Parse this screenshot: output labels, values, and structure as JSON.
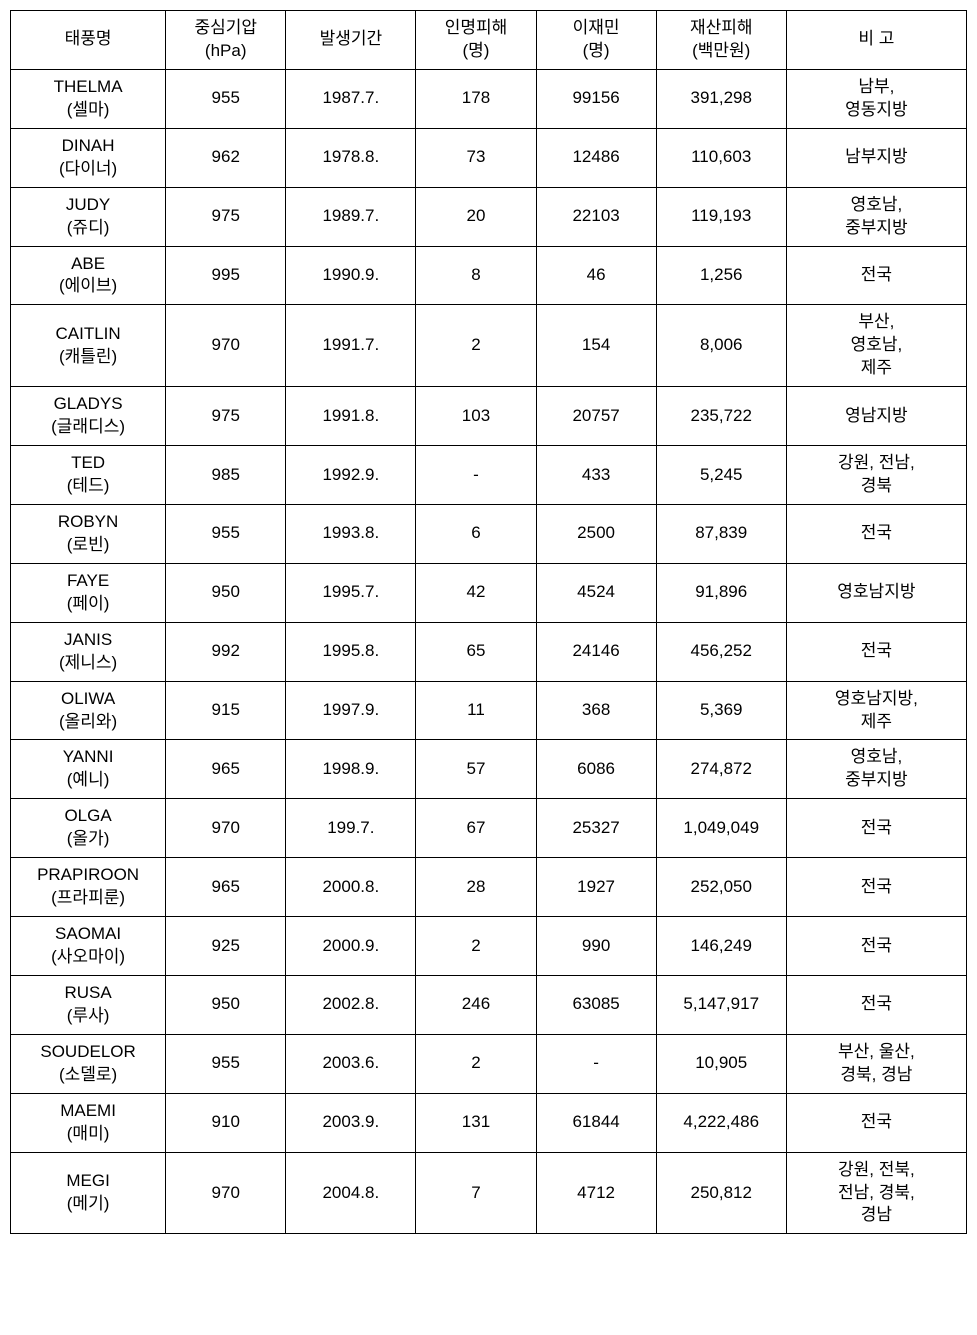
{
  "table": {
    "columns": [
      {
        "key": "name",
        "label": "태풍명",
        "class": "col-name"
      },
      {
        "key": "pressure",
        "label": "중심기압\n(hPa)",
        "class": "col-pressure"
      },
      {
        "key": "period",
        "label": "발생기간",
        "class": "col-period"
      },
      {
        "key": "casualties",
        "label": "인명피해\n(명)",
        "class": "col-casualties"
      },
      {
        "key": "displaced",
        "label": "이재민\n(명)",
        "class": "col-displaced"
      },
      {
        "key": "damage",
        "label": "재산피해\n(백만원)",
        "class": "col-damage"
      },
      {
        "key": "remarks",
        "label": "비  고",
        "class": "col-remarks"
      }
    ],
    "rows": [
      {
        "name": "THELMA\n(셀마)",
        "pressure": "955",
        "period": "1987.7.",
        "casualties": "178",
        "displaced": "99156",
        "damage": "391,298",
        "remarks": "남부,\n영동지방"
      },
      {
        "name": "DINAH\n(다이너)",
        "pressure": "962",
        "period": "1978.8.",
        "casualties": "73",
        "displaced": "12486",
        "damage": "110,603",
        "remarks": "남부지방"
      },
      {
        "name": "JUDY\n(쥬디)",
        "pressure": "975",
        "period": "1989.7.",
        "casualties": "20",
        "displaced": "22103",
        "damage": "119,193",
        "remarks": "영호남,\n중부지방"
      },
      {
        "name": "ABE\n(에이브)",
        "pressure": "995",
        "period": "1990.9.",
        "casualties": "8",
        "displaced": "46",
        "damage": "1,256",
        "remarks": "전국"
      },
      {
        "name": "CAITLIN\n(캐틀린)",
        "pressure": "970",
        "period": "1991.7.",
        "casualties": "2",
        "displaced": "154",
        "damage": "8,006",
        "remarks": "부산,\n영호남,\n제주"
      },
      {
        "name": "GLADYS\n(글래디스)",
        "pressure": "975",
        "period": "1991.8.",
        "casualties": "103",
        "displaced": "20757",
        "damage": "235,722",
        "remarks": "영남지방"
      },
      {
        "name": "TED\n(테드)",
        "pressure": "985",
        "period": "1992.9.",
        "casualties": "-",
        "displaced": "433",
        "damage": "5,245",
        "remarks": "강원, 전남,\n경북"
      },
      {
        "name": "ROBYN\n(로빈)",
        "pressure": "955",
        "period": "1993.8.",
        "casualties": "6",
        "displaced": "2500",
        "damage": "87,839",
        "remarks": "전국"
      },
      {
        "name": "FAYE\n(페이)",
        "pressure": "950",
        "period": "1995.7.",
        "casualties": "42",
        "displaced": "4524",
        "damage": "91,896",
        "remarks": "영호남지방"
      },
      {
        "name": "JANIS\n(제니스)",
        "pressure": "992",
        "period": "1995.8.",
        "casualties": "65",
        "displaced": "24146",
        "damage": "456,252",
        "remarks": "전국"
      },
      {
        "name": "OLIWA\n(올리와)",
        "pressure": "915",
        "period": "1997.9.",
        "casualties": "11",
        "displaced": "368",
        "damage": "5,369",
        "remarks": "영호남지방,\n제주"
      },
      {
        "name": "YANNI\n(예니)",
        "pressure": "965",
        "period": "1998.9.",
        "casualties": "57",
        "displaced": "6086",
        "damage": "274,872",
        "remarks": "영호남,\n중부지방"
      },
      {
        "name": "OLGA\n(올가)",
        "pressure": "970",
        "period": "199.7.",
        "casualties": "67",
        "displaced": "25327",
        "damage": "1,049,049",
        "remarks": "전국"
      },
      {
        "name": "PRAPIROON\n(프라피룬)",
        "pressure": "965",
        "period": "2000.8.",
        "casualties": "28",
        "displaced": "1927",
        "damage": "252,050",
        "remarks": "전국"
      },
      {
        "name": "SAOMAI\n(사오마이)",
        "pressure": "925",
        "period": "2000.9.",
        "casualties": "2",
        "displaced": "990",
        "damage": "146,249",
        "remarks": "전국"
      },
      {
        "name": "RUSA\n(루사)",
        "pressure": "950",
        "period": "2002.8.",
        "casualties": "246",
        "displaced": "63085",
        "damage": "5,147,917",
        "remarks": "전국"
      },
      {
        "name": "SOUDELOR\n(소델로)",
        "pressure": "955",
        "period": "2003.6.",
        "casualties": "2",
        "displaced": "-",
        "damage": "10,905",
        "remarks": "부산, 울산,\n경북, 경남"
      },
      {
        "name": "MAEMI\n(매미)",
        "pressure": "910",
        "period": "2003.9.",
        "casualties": "131",
        "displaced": "61844",
        "damage": "4,222,486",
        "remarks": "전국"
      },
      {
        "name": "MEGI\n(메기)",
        "pressure": "970",
        "period": "2004.8.",
        "casualties": "7",
        "displaced": "4712",
        "damage": "250,812",
        "remarks": "강원, 전북,\n전남, 경북,\n경남"
      }
    ],
    "styling": {
      "border_color": "#000000",
      "background_color": "#ffffff",
      "text_color": "#000000",
      "font_size": 17,
      "font_family": "Malgun Gothic",
      "cell_padding": "6px 4px",
      "line_height": 1.35
    }
  }
}
